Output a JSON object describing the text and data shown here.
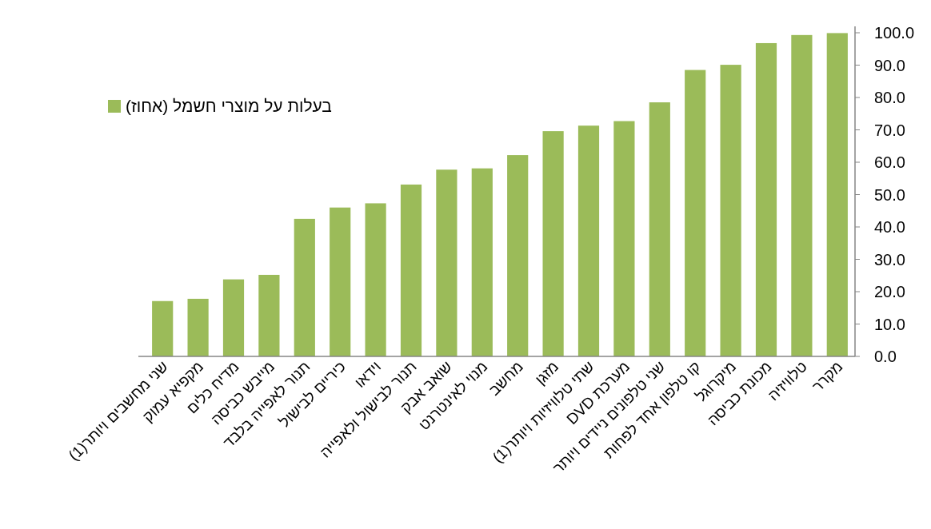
{
  "chart_data": {
    "type": "bar",
    "categories": [
      "שני מחשבים ויותר(1)",
      "מקפיא עמוק",
      "מדיח כלים",
      "מייבש כביסה",
      "תנור לאפייה בלבד",
      "כיריים לבישול",
      "וידאו",
      "תנור לבישול ולאפייה",
      "שואב אבק",
      "מנוי לאינטרנט",
      "מחשב",
      "מזגן",
      "שתי טלוויזיות ויותר(1)",
      "מערכת DVD",
      "שני טלפונים ניידים ויותר",
      "קו טלפון אחד לפחות",
      "מיקרוגל",
      "מכונת כביסה",
      "טלוויזיה",
      "מקרר"
    ],
    "series": [
      {
        "name": "בעלות על מוצרי חשמל (אחוז)",
        "color": "#9bbb59",
        "values": [
          17.1,
          17.8,
          23.8,
          25.2,
          42.5,
          46.0,
          47.3,
          53.1,
          57.7,
          58.1,
          62.2,
          69.6,
          71.3,
          72.7,
          78.5,
          88.5,
          90.1,
          96.8,
          99.3,
          99.9
        ]
      }
    ],
    "ylim": [
      0,
      100
    ],
    "yticks": [
      {
        "value": 0,
        "label": "0.0"
      },
      {
        "value": 10,
        "label": "10.0"
      },
      {
        "value": 20,
        "label": "20.0"
      },
      {
        "value": 30,
        "label": "30.0"
      },
      {
        "value": 40,
        "label": "40.0"
      },
      {
        "value": 50,
        "label": "50.0"
      },
      {
        "value": 60,
        "label": "60.0"
      },
      {
        "value": 70,
        "label": "70.0"
      },
      {
        "value": 80,
        "label": "80.0"
      },
      {
        "value": 90,
        "label": "90.0"
      },
      {
        "value": 100,
        "label": "100.0"
      }
    ],
    "legend": "top left",
    "grid": false
  }
}
